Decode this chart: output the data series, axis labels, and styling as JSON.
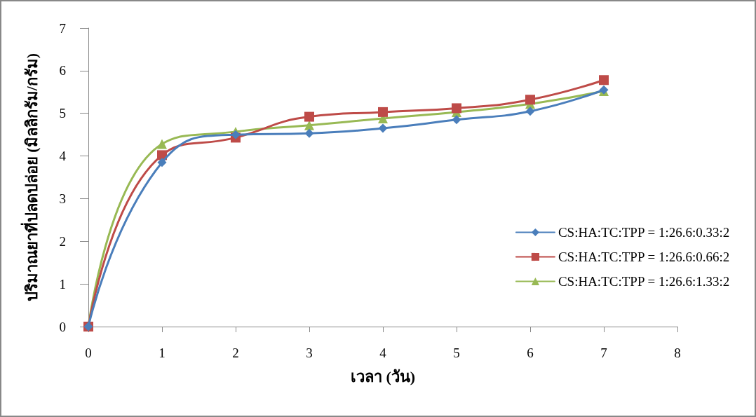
{
  "chart_data": {
    "type": "line",
    "xlabel": "เวลา (วัน)",
    "ylabel": "ปริมาณยาที่ปลดปล่อย (มิลลิกรัม/กรัม)",
    "x": [
      0,
      1,
      2,
      3,
      4,
      5,
      6,
      7
    ],
    "series": [
      {
        "name": "CS:HA:TC:TPP = 1:26.6:0.33:2",
        "color": "#4a7ebb",
        "marker": "diamond",
        "values": [
          0,
          3.85,
          4.5,
          4.53,
          4.65,
          4.85,
          5.05,
          5.55
        ]
      },
      {
        "name": "CS:HA:TC:TPP = 1:26.6:0.66:2",
        "color": "#be4b48",
        "marker": "square",
        "values": [
          0,
          4.02,
          4.43,
          4.92,
          5.03,
          5.12,
          5.32,
          5.78
        ]
      },
      {
        "name": "CS:HA:TC:TPP = 1:26.6:1.33:2",
        "color": "#98b954",
        "marker": "triangle",
        "values": [
          0,
          4.28,
          4.57,
          4.72,
          4.88,
          5.03,
          5.22,
          5.52
        ]
      }
    ],
    "xlim": [
      0,
      8
    ],
    "xticks": [
      0,
      1,
      2,
      3,
      4,
      5,
      6,
      7,
      8
    ],
    "ylim": [
      0,
      7
    ],
    "yticks": [
      0,
      1,
      2,
      3,
      4,
      5,
      6,
      7
    ],
    "grid": false,
    "legend": "right",
    "line_style": "solid"
  }
}
